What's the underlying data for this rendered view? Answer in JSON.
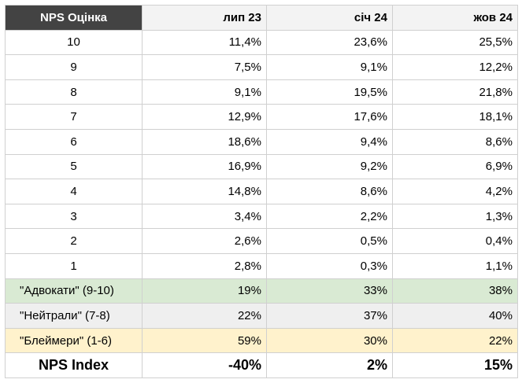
{
  "table": {
    "header": [
      "NPS Оцінка",
      "лип 23",
      "січ 24",
      "жов 24"
    ],
    "rows": [
      [
        "10",
        "11,4%",
        "23,6%",
        "25,5%"
      ],
      [
        "9",
        "7,5%",
        "9,1%",
        "12,2%"
      ],
      [
        "8",
        "9,1%",
        "19,5%",
        "21,8%"
      ],
      [
        "7",
        "12,9%",
        "17,6%",
        "18,1%"
      ],
      [
        "6",
        "18,6%",
        "9,4%",
        "8,6%"
      ],
      [
        "5",
        "16,9%",
        "9,2%",
        "6,9%"
      ],
      [
        "4",
        "14,8%",
        "8,6%",
        "4,2%"
      ],
      [
        "3",
        "3,4%",
        "2,2%",
        "1,3%"
      ],
      [
        "2",
        "2,6%",
        "0,5%",
        "0,4%"
      ],
      [
        "1",
        "2,8%",
        "0,3%",
        "1,1%"
      ],
      [
        "\"Адвокати\" (9-10)",
        "19%",
        "33%",
        "38%"
      ],
      [
        "\"Нейтрали\" (7-8)",
        "22%",
        "37%",
        "40%"
      ],
      [
        "\"Блеймери\" (1-6)",
        "59%",
        "30%",
        "22%"
      ],
      [
        "NPS Index",
        "-40%",
        "2%",
        "15%"
      ]
    ]
  }
}
